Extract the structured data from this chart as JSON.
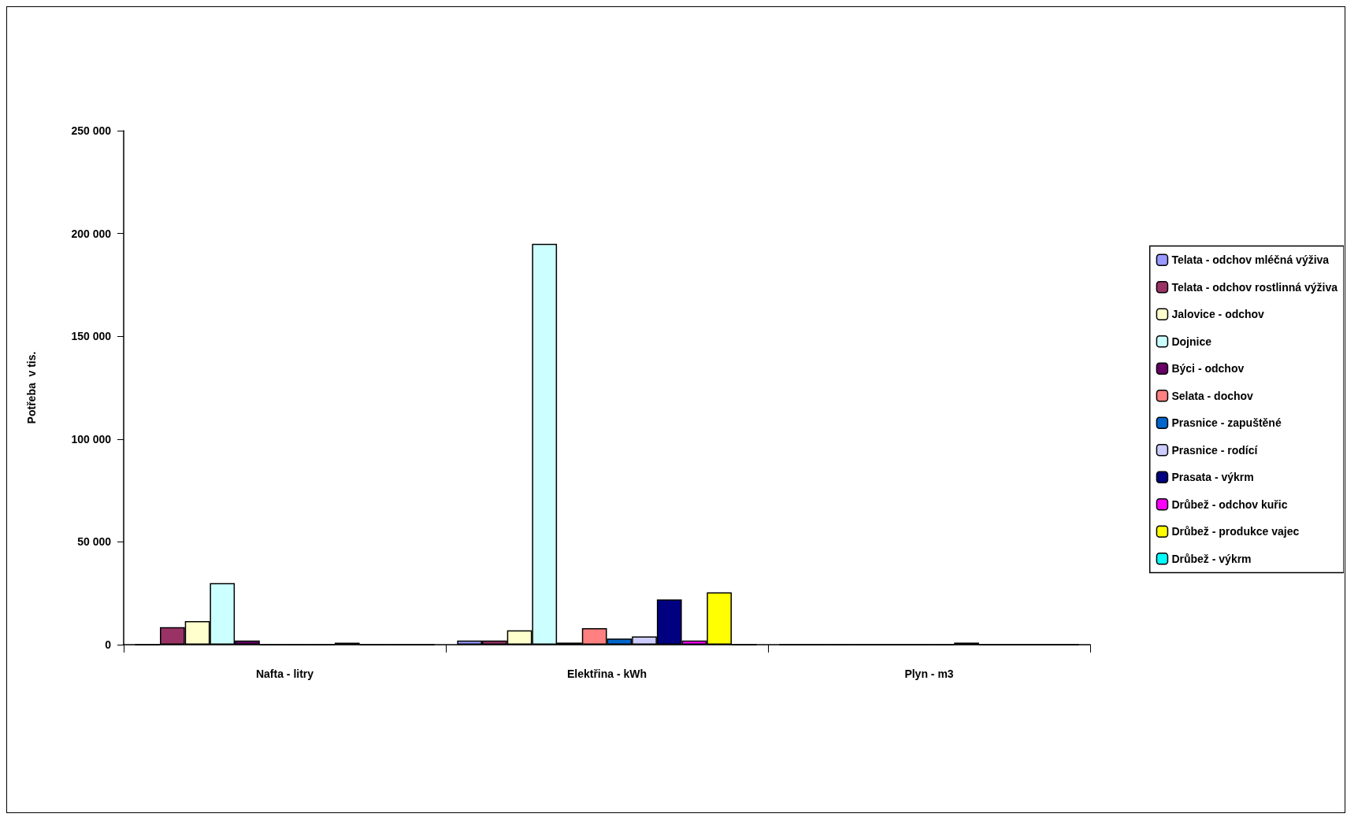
{
  "chart_data": {
    "type": "bar",
    "ylabel": "Potřeba  v tis.",
    "categories": [
      "Nafta - litry",
      "Elektřina - kWh",
      "Plyn - m3"
    ],
    "ylim": [
      0,
      250000
    ],
    "yticks": [
      {
        "value": 0,
        "label": "0"
      },
      {
        "value": 50000,
        "label": "50 000"
      },
      {
        "value": 100000,
        "label": "100 000"
      },
      {
        "value": 150000,
        "label": "150 000"
      },
      {
        "value": 200000,
        "label": "200 000"
      },
      {
        "value": 250000,
        "label": "250 000"
      }
    ],
    "grid": false,
    "legend": "right",
    "series": [
      {
        "name": "Telata - odchov mléčná výživa",
        "color": "#9999ff",
        "values": [
          0,
          2000,
          0
        ]
      },
      {
        "name": "Telata - odchov rostlinná výživa",
        "color": "#993366",
        "values": [
          8500,
          2000,
          0
        ]
      },
      {
        "name": "Jalovice - odchov",
        "color": "#ffffcc",
        "values": [
          11500,
          7000,
          0
        ]
      },
      {
        "name": "Dojnice",
        "color": "#ccffff",
        "values": [
          30000,
          195000,
          0
        ]
      },
      {
        "name": "Býci - odchov",
        "color": "#660066",
        "values": [
          2000,
          1000,
          0
        ]
      },
      {
        "name": "Selata - dochov",
        "color": "#ff8080",
        "values": [
          0,
          8000,
          0
        ]
      },
      {
        "name": "Prasnice - zapuštěné",
        "color": "#0066cc",
        "values": [
          0,
          3000,
          0
        ]
      },
      {
        "name": "Prasnice - rodící",
        "color": "#ccccff",
        "values": [
          0,
          4000,
          1000
        ]
      },
      {
        "name": "Prasata - výkrm",
        "color": "#000080",
        "values": [
          1000,
          22000,
          0
        ]
      },
      {
        "name": "Drůbež - odchov kuřic",
        "color": "#ff00ff",
        "values": [
          0,
          2000,
          0
        ]
      },
      {
        "name": "Drůbež - produkce vajec",
        "color": "#ffff00",
        "values": [
          0,
          25500,
          0
        ]
      },
      {
        "name": "Drůbež - výkrm",
        "color": "#00ffff",
        "values": [
          0,
          0,
          0
        ]
      }
    ]
  }
}
